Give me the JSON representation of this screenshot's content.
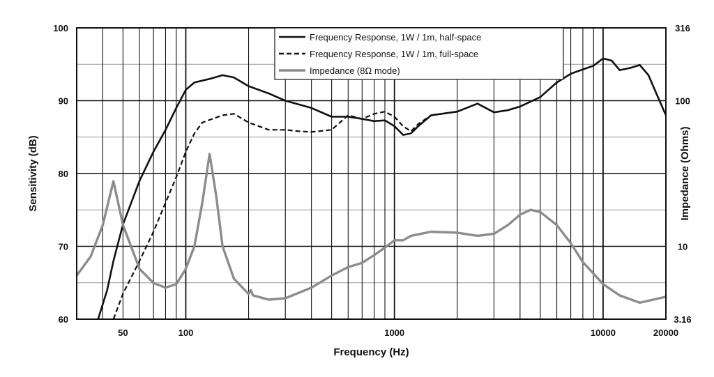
{
  "chart_data": {
    "type": "line",
    "xlabel": "Frequency (Hz)",
    "ylabel": "Sensitivity (dB)",
    "y2label": "Impedance (Ohms)",
    "x_scale": "log",
    "xlim": [
      30,
      20000
    ],
    "ylim": [
      60,
      100
    ],
    "y2lim": [
      3.16,
      316
    ],
    "y2_scale": "log",
    "grid": true,
    "legend_position": "top-center",
    "x_tick_labels": [
      {
        "value": 50,
        "label": "50"
      },
      {
        "value": 100,
        "label": "100"
      },
      {
        "value": 1000,
        "label": "1000"
      },
      {
        "value": 10000,
        "label": "10000"
      },
      {
        "value": 20000,
        "label": "20000"
      }
    ],
    "y_ticks": [
      60,
      70,
      80,
      90,
      100
    ],
    "y2_tick_labels": [
      {
        "value": 3.16,
        "label": "3.16"
      },
      {
        "value": 10,
        "label": "10"
      },
      {
        "value": 100,
        "label": "100"
      },
      {
        "value": 316,
        "label": "316"
      }
    ],
    "series": [
      {
        "name": "Frequency Response, 1W / 1m, half-space",
        "axis": "left",
        "style": "solid",
        "color": "#111111",
        "points": [
          [
            38,
            60
          ],
          [
            42,
            64
          ],
          [
            45,
            68
          ],
          [
            50,
            73
          ],
          [
            60,
            79
          ],
          [
            70,
            83
          ],
          [
            80,
            86
          ],
          [
            90,
            89
          ],
          [
            100,
            91.5
          ],
          [
            110,
            92.5
          ],
          [
            130,
            93
          ],
          [
            150,
            93.5
          ],
          [
            170,
            93.2
          ],
          [
            200,
            92
          ],
          [
            250,
            91
          ],
          [
            300,
            90
          ],
          [
            400,
            89
          ],
          [
            500,
            87.8
          ],
          [
            600,
            87.8
          ],
          [
            700,
            87.5
          ],
          [
            800,
            87.2
          ],
          [
            900,
            87.3
          ],
          [
            1000,
            86.5
          ],
          [
            1100,
            85.3
          ],
          [
            1200,
            85.5
          ],
          [
            1300,
            86.5
          ],
          [
            1500,
            88
          ],
          [
            2000,
            88.5
          ],
          [
            2500,
            89.6
          ],
          [
            3000,
            88.4
          ],
          [
            3500,
            88.7
          ],
          [
            4000,
            89.2
          ],
          [
            5000,
            90.5
          ],
          [
            6000,
            92.5
          ],
          [
            7000,
            93.7
          ],
          [
            8000,
            94.3
          ],
          [
            9000,
            94.8
          ],
          [
            10000,
            95.8
          ],
          [
            11000,
            95.5
          ],
          [
            12000,
            94.2
          ],
          [
            13500,
            94.5
          ],
          [
            15000,
            94.9
          ],
          [
            16500,
            93.5
          ],
          [
            18000,
            91
          ],
          [
            20000,
            88
          ]
        ]
      },
      {
        "name": "Frequency Response, 1W / 1m, full-space",
        "axis": "left",
        "style": "dashed",
        "color": "#111111",
        "points": [
          [
            45,
            60
          ],
          [
            50,
            63.5
          ],
          [
            60,
            68
          ],
          [
            70,
            72
          ],
          [
            80,
            76
          ],
          [
            90,
            79.5
          ],
          [
            100,
            83
          ],
          [
            110,
            85.5
          ],
          [
            120,
            87
          ],
          [
            150,
            88
          ],
          [
            170,
            88.2
          ],
          [
            200,
            87
          ],
          [
            250,
            86
          ],
          [
            300,
            86
          ],
          [
            350,
            85.8
          ],
          [
            400,
            85.7
          ],
          [
            500,
            86
          ],
          [
            600,
            88
          ],
          [
            700,
            87.5
          ],
          [
            800,
            88.2
          ],
          [
            900,
            88.5
          ],
          [
            1000,
            87.8
          ],
          [
            1100,
            86.5
          ],
          [
            1200,
            85.8
          ],
          [
            1300,
            86.8
          ],
          [
            1500,
            88
          ],
          [
            2000,
            88.5
          ],
          [
            2500,
            89.6
          ],
          [
            3000,
            88.4
          ],
          [
            3500,
            88.7
          ],
          [
            4000,
            89.2
          ],
          [
            5000,
            90.5
          ],
          [
            6000,
            92.5
          ],
          [
            7000,
            93.7
          ],
          [
            8000,
            94.3
          ],
          [
            9000,
            94.8
          ],
          [
            10000,
            95.8
          ],
          [
            11000,
            95.5
          ],
          [
            12000,
            94.2
          ],
          [
            13500,
            94.5
          ],
          [
            15000,
            94.9
          ],
          [
            16500,
            93.5
          ],
          [
            18000,
            91
          ],
          [
            20000,
            88
          ]
        ]
      },
      {
        "name": "Impedance (8Ω mode)",
        "axis": "right",
        "style": "solid",
        "color": "#8c8c8c",
        "points": [
          [
            30,
            6.3
          ],
          [
            35,
            8.5
          ],
          [
            40,
            14
          ],
          [
            45,
            28
          ],
          [
            50,
            14
          ],
          [
            60,
            7
          ],
          [
            70,
            5.6
          ],
          [
            80,
            5.2
          ],
          [
            90,
            5.5
          ],
          [
            100,
            7
          ],
          [
            110,
            10
          ],
          [
            120,
            20
          ],
          [
            130,
            43
          ],
          [
            140,
            22
          ],
          [
            150,
            10
          ],
          [
            170,
            6
          ],
          [
            200,
            4.7
          ],
          [
            205,
            5
          ],
          [
            210,
            4.6
          ],
          [
            250,
            4.3
          ],
          [
            300,
            4.4
          ],
          [
            400,
            5.2
          ],
          [
            500,
            6.3
          ],
          [
            600,
            7.2
          ],
          [
            700,
            7.7
          ],
          [
            800,
            8.7
          ],
          [
            900,
            9.8
          ],
          [
            1000,
            11
          ],
          [
            1100,
            11
          ],
          [
            1200,
            11.8
          ],
          [
            1500,
            12.6
          ],
          [
            2000,
            12.4
          ],
          [
            2500,
            11.8
          ],
          [
            3000,
            12.2
          ],
          [
            3500,
            14
          ],
          [
            4000,
            16.5
          ],
          [
            4500,
            17.8
          ],
          [
            5000,
            17.2
          ],
          [
            6000,
            14
          ],
          [
            7000,
            10.5
          ],
          [
            8000,
            7.8
          ],
          [
            10000,
            5.5
          ],
          [
            12000,
            4.6
          ],
          [
            15000,
            4.1
          ],
          [
            20000,
            4.5
          ]
        ]
      }
    ]
  }
}
